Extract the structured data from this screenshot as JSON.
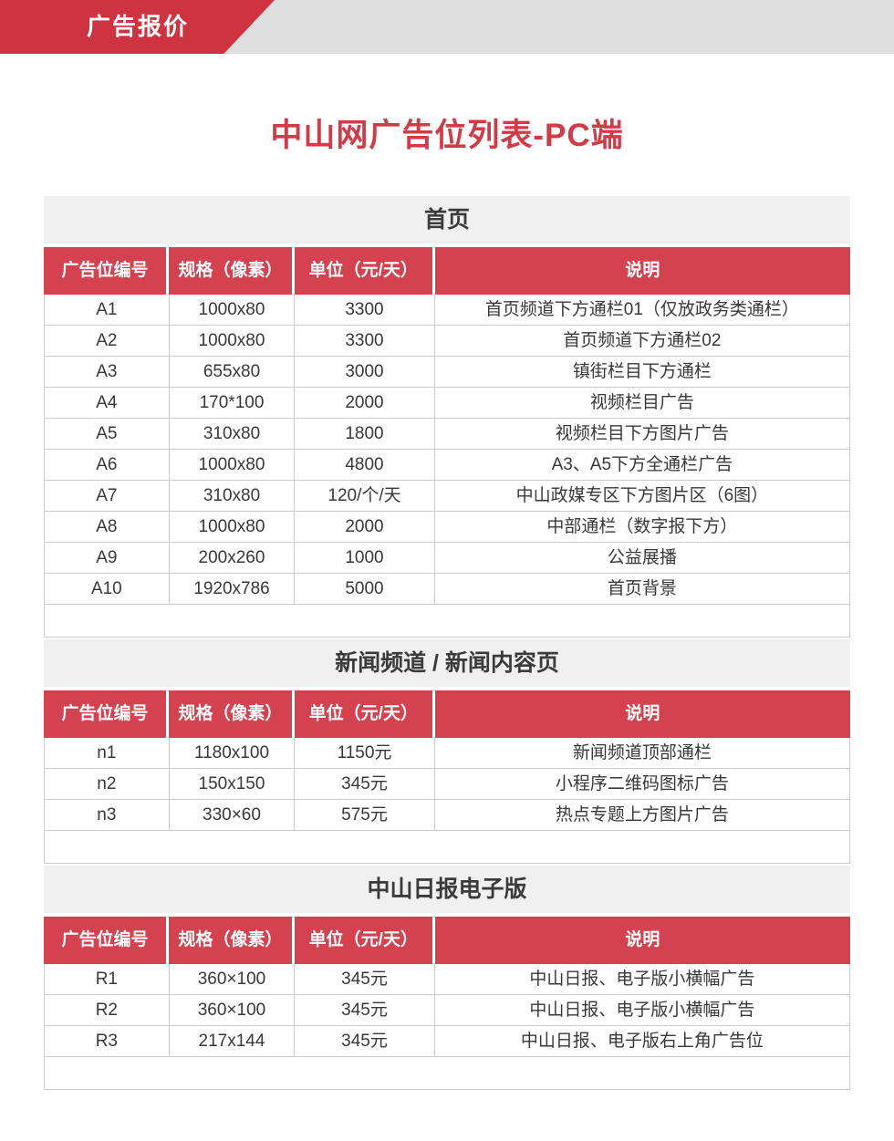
{
  "banner": {
    "label": "广告报价"
  },
  "page_title": "中山网广告位列表-PC端",
  "colors": {
    "ribbon_red": "#cf3340",
    "table_header_red": "#d5424f",
    "title_red": "#d23a46",
    "section_band_gray": "#f0f0f0",
    "banner_stripe_gray": "#dedede",
    "border_gray": "#cccccc",
    "body_text": "#383838"
  },
  "sections": [
    {
      "title": "首页",
      "columns": [
        "广告位编号",
        "规格（像素）",
        "单位（元/天）",
        "说明"
      ],
      "rows": [
        [
          "A1",
          "1000x80",
          "3300",
          "首页频道下方通栏01（仅放政务类通栏）"
        ],
        [
          "A2",
          "1000x80",
          "3300",
          "首页频道下方通栏02"
        ],
        [
          "A3",
          "655x80",
          "3000",
          "镇街栏目下方通栏"
        ],
        [
          "A4",
          "170*100",
          "2000",
          "视频栏目广告"
        ],
        [
          "A5",
          "310x80",
          "1800",
          "视频栏目下方图片广告"
        ],
        [
          "A6",
          "1000x80",
          "4800",
          "A3、A5下方全通栏广告"
        ],
        [
          "A7",
          "310x80",
          "120/个/天",
          "中山政媒专区下方图片区（6图）"
        ],
        [
          "A8",
          "1000x80",
          "2000",
          "中部通栏（数字报下方）"
        ],
        [
          "A9",
          "200x260",
          "1000",
          "公益展播"
        ],
        [
          "A10",
          "1920x786",
          "5000",
          "首页背景"
        ]
      ]
    },
    {
      "title": "新闻频道 / 新闻内容页",
      "columns": [
        "广告位编号",
        "规格（像素）",
        "单位（元/天）",
        "说明"
      ],
      "rows": [
        [
          "n1",
          "1180x100",
          "1150元",
          "新闻频道顶部通栏"
        ],
        [
          "n2",
          "150x150",
          "345元",
          "小程序二维码图标广告"
        ],
        [
          "n3",
          "330×60",
          "575元",
          "热点专题上方图片广告"
        ]
      ]
    },
    {
      "title": "中山日报电子版",
      "columns": [
        "广告位编号",
        "规格（像素）",
        "单位（元/天）",
        "说明"
      ],
      "rows": [
        [
          "R1",
          "360×100",
          "345元",
          "中山日报、电子版小横幅广告"
        ],
        [
          "R2",
          "360×100",
          "345元",
          "中山日报、电子版小横幅广告"
        ],
        [
          "R3",
          "217x144",
          "345元",
          "中山日报、电子版右上角广告位"
        ]
      ]
    }
  ]
}
